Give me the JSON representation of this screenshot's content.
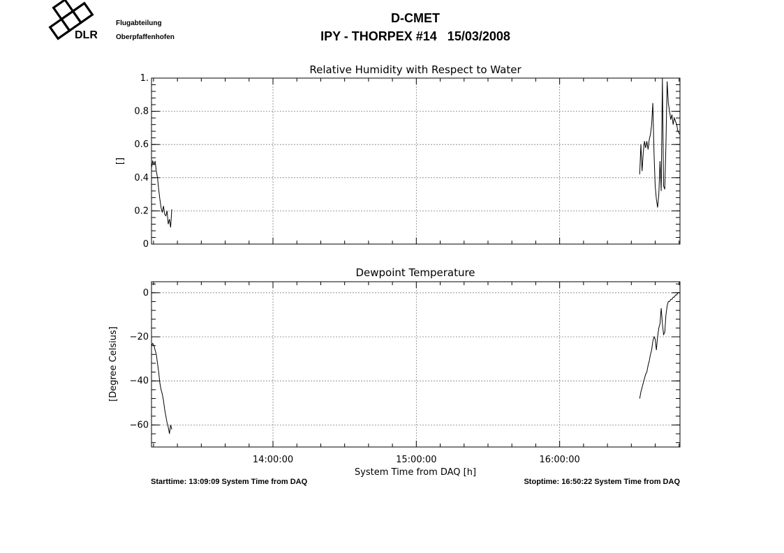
{
  "header": {
    "org_line1": "Flugabteilung",
    "org_line2": "Oberpfaffenhofen",
    "logo_text": "DLR",
    "title_line1": "D-CMET",
    "title_line2": "IPY - THORPEX #14   15/03/2008"
  },
  "footer": {
    "starttime": "Starttime: 13:09:09 System Time from DAQ",
    "stoptime": "Stoptime: 16:50:22 System Time from DAQ"
  },
  "chart_data": [
    {
      "type": "line",
      "title": "Relative Humidity with Respect to Water",
      "xlabel": "",
      "ylabel": "[]",
      "xlim": [
        "13:09:09",
        "16:50:22"
      ],
      "ylim": [
        0,
        1.0
      ],
      "yticks": [
        0,
        0.2,
        0.4,
        0.6,
        0.8,
        1.0
      ],
      "ytick_labels": [
        "0",
        "0.2",
        "0.4",
        "0.6",
        "0.8",
        "1."
      ],
      "grid": true,
      "series": [
        {
          "segments": [
            [
              [
                "13:09:09",
                0.46
              ],
              [
                "13:09:40",
                0.5
              ],
              [
                "13:10:10",
                0.48
              ],
              [
                "13:10:40",
                0.5
              ],
              [
                "13:11:10",
                0.44
              ],
              [
                "13:11:40",
                0.4
              ],
              [
                "13:12:10",
                0.33
              ],
              [
                "13:12:40",
                0.27
              ],
              [
                "13:13:10",
                0.22
              ],
              [
                "13:13:40",
                0.19
              ],
              [
                "13:14:10",
                0.23
              ],
              [
                "13:14:40",
                0.18
              ],
              [
                "13:15:10",
                0.17
              ],
              [
                "13:15:40",
                0.2
              ],
              [
                "13:16:10",
                0.12
              ],
              [
                "13:16:40",
                0.15
              ],
              [
                "13:17:10",
                0.1
              ],
              [
                "13:17:40",
                0.21
              ]
            ],
            [
              [
                "16:33:30",
                0.42
              ],
              [
                "16:34:00",
                0.6
              ],
              [
                "16:34:30",
                0.44
              ],
              [
                "16:35:00",
                0.55
              ],
              [
                "16:35:30",
                0.62
              ],
              [
                "16:36:00",
                0.58
              ],
              [
                "16:36:30",
                0.62
              ],
              [
                "16:37:00",
                0.57
              ],
              [
                "16:37:30",
                0.63
              ],
              [
                "16:38:00",
                0.66
              ],
              [
                "16:38:30",
                0.72
              ],
              [
                "16:39:00",
                0.85
              ],
              [
                "16:39:30",
                0.55
              ],
              [
                "16:40:00",
                0.35
              ],
              [
                "16:40:30",
                0.27
              ],
              [
                "16:41:00",
                0.22
              ],
              [
                "16:41:30",
                0.3
              ],
              [
                "16:42:00",
                0.5
              ],
              [
                "16:42:30",
                0.32
              ],
              [
                "16:43:00",
                1.0
              ],
              [
                "16:43:30",
                0.35
              ],
              [
                "16:44:00",
                0.33
              ],
              [
                "16:44:30",
                0.6
              ],
              [
                "16:45:00",
                0.98
              ],
              [
                "16:45:30",
                0.85
              ],
              [
                "16:46:00",
                0.8
              ],
              [
                "16:46:30",
                0.75
              ],
              [
                "16:47:00",
                0.78
              ],
              [
                "16:47:30",
                0.72
              ],
              [
                "16:48:00",
                0.76
              ],
              [
                "16:48:30",
                0.74
              ],
              [
                "16:49:00",
                0.72
              ],
              [
                "16:49:30",
                0.68
              ],
              [
                "16:50:22",
                0.66
              ]
            ]
          ]
        }
      ]
    },
    {
      "type": "line",
      "title": "Dewpoint Temperature",
      "xlabel": "System Time from DAQ [h]",
      "ylabel": "[Degree Celsius]",
      "xlim": [
        "13:09:09",
        "16:50:22"
      ],
      "ylim": [
        -70,
        5
      ],
      "xticks": [
        "14:00:00",
        "15:00:00",
        "16:00:00"
      ],
      "yticks": [
        -60,
        -40,
        -20,
        0
      ],
      "ytick_labels": [
        "-60",
        "-40",
        "-20",
        "0"
      ],
      "grid": true,
      "series": [
        {
          "segments": [
            [
              [
                "13:09:09",
                -24
              ],
              [
                "13:09:40",
                -23
              ],
              [
                "13:10:10",
                -24
              ],
              [
                "13:10:40",
                -26
              ],
              [
                "13:11:10",
                -28
              ],
              [
                "13:11:40",
                -32
              ],
              [
                "13:12:10",
                -36
              ],
              [
                "13:12:40",
                -41
              ],
              [
                "13:13:10",
                -44
              ],
              [
                "13:13:40",
                -46
              ],
              [
                "13:14:10",
                -49
              ],
              [
                "13:14:40",
                -53
              ],
              [
                "13:15:10",
                -56
              ],
              [
                "13:15:40",
                -59
              ],
              [
                "13:16:10",
                -61
              ],
              [
                "13:16:40",
                -64
              ],
              [
                "13:17:10",
                -60
              ],
              [
                "13:17:40",
                -62
              ]
            ],
            [
              [
                "16:33:30",
                -48
              ],
              [
                "16:34:00",
                -45
              ],
              [
                "16:34:30",
                -43
              ],
              [
                "16:35:00",
                -41
              ],
              [
                "16:35:30",
                -39
              ],
              [
                "16:36:00",
                -37
              ],
              [
                "16:36:30",
                -36
              ],
              [
                "16:37:00",
                -33
              ],
              [
                "16:37:30",
                -31
              ],
              [
                "16:38:00",
                -28
              ],
              [
                "16:38:30",
                -26
              ],
              [
                "16:39:00",
                -22
              ],
              [
                "16:39:30",
                -20
              ],
              [
                "16:40:00",
                -21
              ],
              [
                "16:40:30",
                -26
              ],
              [
                "16:41:00",
                -20
              ],
              [
                "16:41:30",
                -16
              ],
              [
                "16:42:00",
                -14
              ],
              [
                "16:42:30",
                -7
              ],
              [
                "16:43:00",
                -14
              ],
              [
                "16:43:30",
                -19
              ],
              [
                "16:44:00",
                -18
              ],
              [
                "16:44:30",
                -10
              ],
              [
                "16:45:00",
                -6
              ],
              [
                "16:45:30",
                -4
              ],
              [
                "16:46:00",
                -4
              ],
              [
                "16:46:30",
                -3
              ],
              [
                "16:47:00",
                -3
              ],
              [
                "16:47:30",
                -2
              ],
              [
                "16:48:00",
                -2
              ],
              [
                "16:48:30",
                -1
              ],
              [
                "16:49:00",
                -1
              ],
              [
                "16:49:30",
                0
              ],
              [
                "16:50:22",
                0
              ]
            ]
          ]
        }
      ]
    }
  ],
  "colors": {
    "line": "#000000",
    "grid": "#7f7f7f",
    "frame": "#000000"
  }
}
